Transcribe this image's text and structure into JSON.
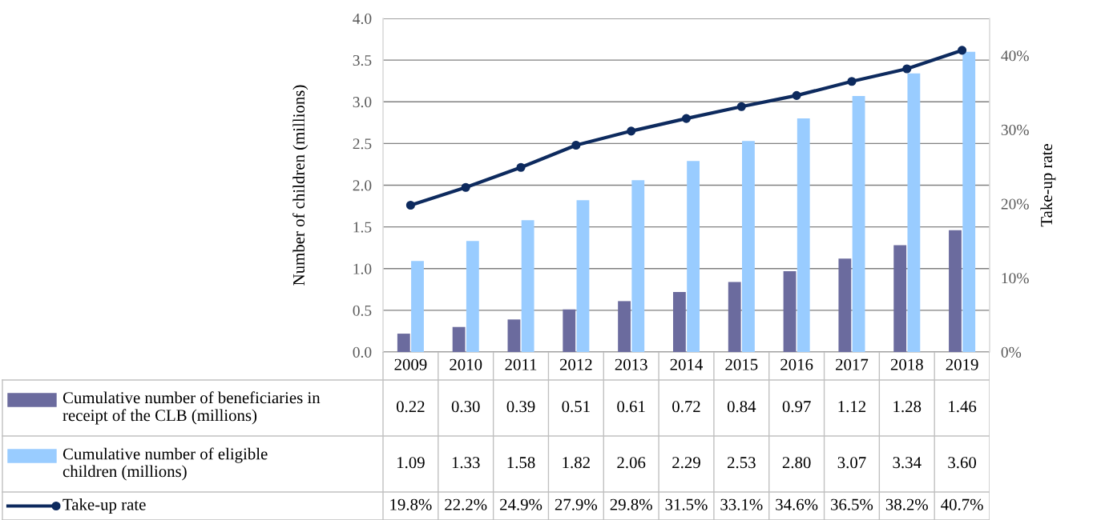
{
  "chart_data": {
    "type": "bar",
    "categories": [
      "2009",
      "2010",
      "2011",
      "2012",
      "2013",
      "2014",
      "2015",
      "2016",
      "2017",
      "2018",
      "2019"
    ],
    "series": [
      {
        "name": "Cumulative number of beneficiaries in\nreceipt of the CLB (millions)",
        "color": "#6b6b9e",
        "values": [
          0.22,
          0.3,
          0.39,
          0.51,
          0.61,
          0.72,
          0.84,
          0.97,
          1.12,
          1.28,
          1.46
        ],
        "value_labels": [
          "0.22",
          "0.30",
          "0.39",
          "0.51",
          "0.61",
          "0.72",
          "0.84",
          "0.97",
          "1.12",
          "1.28",
          "1.46"
        ]
      },
      {
        "name": "Cumulative number of eligible\nchildren (millions)",
        "color": "#99ccff",
        "values": [
          1.09,
          1.33,
          1.58,
          1.82,
          2.06,
          2.29,
          2.53,
          2.8,
          3.07,
          3.34,
          3.6
        ],
        "value_labels": [
          "1.09",
          "1.33",
          "1.58",
          "1.82",
          "2.06",
          "2.29",
          "2.53",
          "2.80",
          "3.07",
          "3.34",
          "3.60"
        ]
      },
      {
        "name": "Take-up rate",
        "type": "line",
        "axis": "y2",
        "color": "#0d2a5e",
        "marker": "circle",
        "values": [
          19.8,
          22.2,
          24.9,
          27.9,
          29.8,
          31.5,
          33.1,
          34.6,
          36.5,
          38.2,
          40.7
        ],
        "value_labels": [
          "19.8%",
          "22.2%",
          "24.9%",
          "27.9%",
          "29.8%",
          "31.5%",
          "33.1%",
          "34.6%",
          "36.5%",
          "38.2%",
          "40.7%"
        ]
      }
    ],
    "ylabel": "Number of children (millions)",
    "y2label": "Take-up rate",
    "ylim": [
      0,
      4
    ],
    "yticks": [
      {
        "value": 0,
        "label": "0.0"
      },
      {
        "value": 0.5,
        "label": "0.5"
      },
      {
        "value": 1,
        "label": "1.0"
      },
      {
        "value": 1.5,
        "label": "1.5"
      },
      {
        "value": 2,
        "label": "2.0"
      },
      {
        "value": 2.5,
        "label": "2.5"
      },
      {
        "value": 3,
        "label": "3.0"
      },
      {
        "value": 3.5,
        "label": "3.5"
      },
      {
        "value": 4,
        "label": "4.0"
      }
    ],
    "y2lim": [
      0,
      45
    ],
    "y2ticks": [
      {
        "value": 0,
        "label": "0%"
      },
      {
        "value": 10,
        "label": "10%"
      },
      {
        "value": 20,
        "label": "20%"
      },
      {
        "value": 30,
        "label": "30%"
      },
      {
        "value": 40,
        "label": "40%"
      }
    ],
    "grid": "y",
    "legend": "bottom"
  }
}
